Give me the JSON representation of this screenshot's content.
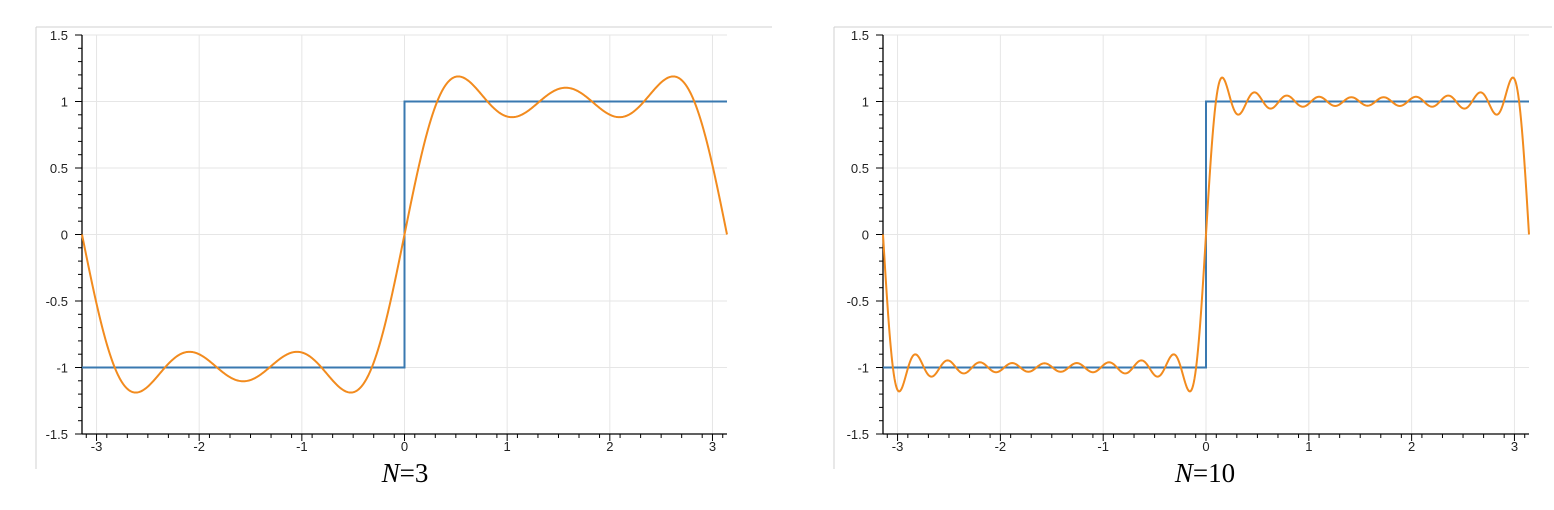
{
  "chart_data": [
    {
      "type": "line",
      "caption": {
        "var": "N",
        "eq": "=",
        "value": "3"
      },
      "xlim": [
        -3.14159,
        3.14159
      ],
      "ylim": [
        -1.5,
        1.5
      ],
      "xticks": [
        "-3",
        "-2",
        "-1",
        "0",
        "1",
        "2",
        "3"
      ],
      "yticks": [
        "-1.5",
        "-1",
        "-0.5",
        "0",
        "0.5",
        "1",
        "1.5"
      ],
      "grid": true,
      "series": [
        {
          "kind": "square_wave",
          "color": "#3a79b0",
          "values": {
            "x<0": -1,
            "x>0": 1
          }
        },
        {
          "kind": "fourier_partial_sum",
          "terms": 3,
          "color": "#f28b1e"
        }
      ]
    },
    {
      "type": "line",
      "caption": {
        "var": "N",
        "eq": "=",
        "value": "10"
      },
      "xlim": [
        -3.14159,
        3.14159
      ],
      "ylim": [
        -1.5,
        1.5
      ],
      "xticks": [
        "-3",
        "-2",
        "-1",
        "0",
        "1",
        "2",
        "3"
      ],
      "yticks": [
        "-1.5",
        "-1",
        "-0.5",
        "0",
        "0.5",
        "1",
        "1.5"
      ],
      "grid": true,
      "series": [
        {
          "kind": "square_wave",
          "color": "#3a79b0",
          "values": {
            "x<0": -1,
            "x>0": 1
          }
        },
        {
          "kind": "fourier_partial_sum",
          "terms": 10,
          "color": "#f28b1e"
        }
      ]
    }
  ]
}
